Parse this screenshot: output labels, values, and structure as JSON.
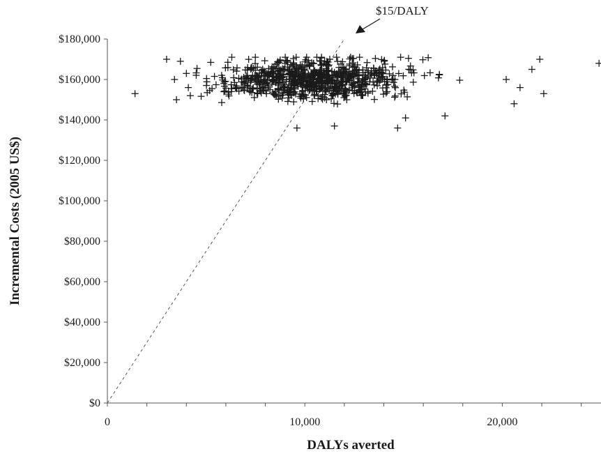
{
  "chart_data": {
    "type": "scatter",
    "xlabel": "DALYs averted",
    "ylabel": "Incremental Costs (2005 US$)",
    "xlim": [
      0,
      25000
    ],
    "ylim": [
      0,
      180000
    ],
    "x_ticks": [
      0,
      10000,
      20000
    ],
    "x_tick_labels": [
      "0",
      "10,000",
      "20,000"
    ],
    "y_ticks": [
      0,
      20000,
      40000,
      60000,
      80000,
      100000,
      120000,
      140000,
      160000,
      180000
    ],
    "y_tick_labels": [
      "$0",
      "$20,000",
      "$40,000",
      "$60,000",
      "$80,000",
      "$100,000",
      "$120,000",
      "$140,000",
      "$160,000",
      "$180,000"
    ],
    "marker": "+",
    "threshold_line": {
      "label": "$15/DALY",
      "slope": 15,
      "style": "dashed"
    },
    "annotation": {
      "text": "$15/DALY",
      "arrow": true
    },
    "grid": false,
    "legend": "none",
    "n_points": 900,
    "x_range_points": [
      1400,
      25000
    ],
    "y_range_points": [
      135000,
      171000
    ],
    "x_center": 10500,
    "y_center": 160000,
    "sample_points": [
      [
        1400,
        153000
      ],
      [
        3000,
        170000
      ],
      [
        3400,
        160000
      ],
      [
        3500,
        150000
      ],
      [
        3700,
        169000
      ],
      [
        4000,
        163000
      ],
      [
        4100,
        156000
      ],
      [
        4200,
        152000
      ],
      [
        20200,
        160000
      ],
      [
        20600,
        148000
      ],
      [
        20900,
        156000
      ],
      [
        21500,
        165000
      ],
      [
        21900,
        170000
      ],
      [
        22100,
        153000
      ],
      [
        24900,
        168000
      ],
      [
        14700,
        136000
      ],
      [
        9600,
        136000
      ],
      [
        11500,
        137000
      ],
      [
        17100,
        142000
      ],
      [
        15100,
        141000
      ]
    ]
  }
}
